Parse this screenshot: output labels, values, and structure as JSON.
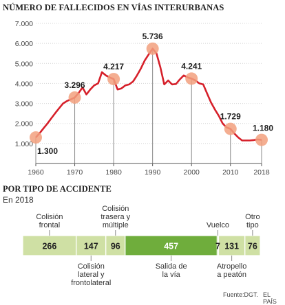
{
  "chart_data": [
    {
      "type": "line",
      "title": "NÚMERO DE FALLECIDOS EN VÍAS INTERURBANAS",
      "xlim": [
        1960,
        2018
      ],
      "ylim": [
        0,
        7000
      ],
      "x_ticks": [
        "1960",
        "1970",
        "1980",
        "1990",
        "2000",
        "2010",
        "2018"
      ],
      "y_ticks": [
        "1.000",
        "2.000",
        "3.000",
        "4.000",
        "5.000",
        "6.000",
        "7.000"
      ],
      "grid": true,
      "line_color": "#d6202a",
      "marker_color": "#f2a07e",
      "points": [
        [
          1960,
          1300
        ],
        [
          1961,
          1520
        ],
        [
          1962,
          1760
        ],
        [
          1963,
          2000
        ],
        [
          1964,
          2260
        ],
        [
          1965,
          2520
        ],
        [
          1966,
          2760
        ],
        [
          1967,
          3000
        ],
        [
          1968,
          3120
        ],
        [
          1969,
          3200
        ],
        [
          1970,
          3296
        ],
        [
          1971,
          3520
        ],
        [
          1972,
          3800
        ],
        [
          1973,
          3450
        ],
        [
          1974,
          3700
        ],
        [
          1975,
          3900
        ],
        [
          1976,
          4000
        ],
        [
          1977,
          4560
        ],
        [
          1978,
          4400
        ],
        [
          1979,
          4300
        ],
        [
          1980,
          4217
        ],
        [
          1981,
          3700
        ],
        [
          1982,
          3750
        ],
        [
          1983,
          3900
        ],
        [
          1984,
          3950
        ],
        [
          1985,
          4100
        ],
        [
          1986,
          4400
        ],
        [
          1987,
          4750
        ],
        [
          1988,
          5150
        ],
        [
          1989,
          5450
        ],
        [
          1990,
          5736
        ],
        [
          1991,
          5500
        ],
        [
          1992,
          4800
        ],
        [
          1993,
          3950
        ],
        [
          1994,
          4150
        ],
        [
          1995,
          3950
        ],
        [
          1996,
          3970
        ],
        [
          1997,
          4200
        ],
        [
          1998,
          4400
        ],
        [
          1999,
          4300
        ],
        [
          2000,
          4241
        ],
        [
          2001,
          4150
        ],
        [
          2002,
          4000
        ],
        [
          2003,
          3950
        ],
        [
          2004,
          3500
        ],
        [
          2005,
          3050
        ],
        [
          2006,
          2700
        ],
        [
          2007,
          2380
        ],
        [
          2008,
          2000
        ],
        [
          2009,
          1800
        ],
        [
          2010,
          1729
        ],
        [
          2011,
          1500
        ],
        [
          2012,
          1300
        ],
        [
          2013,
          1150
        ],
        [
          2014,
          1150
        ],
        [
          2015,
          1150
        ],
        [
          2016,
          1170
        ],
        [
          2017,
          1200
        ],
        [
          2018,
          1180
        ]
      ],
      "highlights": [
        {
          "x": 1960,
          "y": 1300,
          "label": "1.300"
        },
        {
          "x": 1970,
          "y": 3296,
          "label": "3.296"
        },
        {
          "x": 1980,
          "y": 4217,
          "label": "4.217"
        },
        {
          "x": 1990,
          "y": 5736,
          "label": "5.736"
        },
        {
          "x": 2000,
          "y": 4241,
          "label": "4.241"
        },
        {
          "x": 2010,
          "y": 1729,
          "label": "1.729"
        },
        {
          "x": 2018,
          "y": 1180,
          "label": "1.180"
        }
      ]
    },
    {
      "type": "bar",
      "orientation": "stacked-horizontal",
      "title": "POR TIPO DE ACCIDENTE",
      "subtitle": "En 2018",
      "segments": [
        {
          "label": "Colisión frontal",
          "label_lines": [
            "Colisión",
            "frontal"
          ],
          "label_side": "above",
          "value": 266,
          "display": "266",
          "color": "#cfe0a4"
        },
        {
          "label": "Colisión lateral y frontolateral",
          "label_lines": [
            "Colisión",
            "lateral y",
            "frontolateral"
          ],
          "label_side": "below",
          "value": 147,
          "display": "147",
          "color": "#cfe0a4"
        },
        {
          "label": "Colisión trasera y múltiple",
          "label_lines": [
            "Colisión",
            "trasera y",
            "múltiple"
          ],
          "label_side": "above",
          "value": 96,
          "display": "96",
          "color": "#cfe0a4"
        },
        {
          "label": "Salida de la vía",
          "label_lines": [
            "Salida de",
            "la vía"
          ],
          "label_side": "below",
          "value": 457,
          "display": "457",
          "color": "#6fad3c"
        },
        {
          "label": "Vuelco",
          "label_lines": [
            "Vuelco"
          ],
          "label_side": "above",
          "value": 7,
          "display": "7",
          "color": "#cfe0a4"
        },
        {
          "label": "Atropello a peatón",
          "label_lines": [
            "Atropello",
            "a peatón"
          ],
          "label_side": "below",
          "value": 131,
          "display": "131",
          "color": "#cfe0a4"
        },
        {
          "label": "Otro tipo",
          "label_lines": [
            "Otro",
            "tipo"
          ],
          "label_side": "above",
          "value": 76,
          "display": "76",
          "color": "#cfe0a4"
        }
      ]
    }
  ],
  "footer": {
    "source": "Fuente:DGT.",
    "publisher": "EL PAÍS"
  }
}
